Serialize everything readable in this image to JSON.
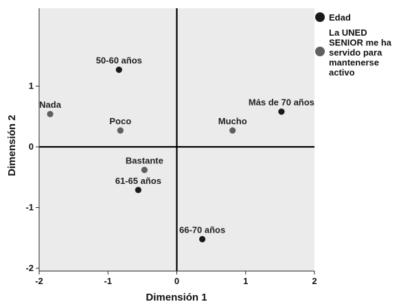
{
  "chart_data": {
    "type": "scatter",
    "xlabel": "Dimensión 1",
    "ylabel": "Dimensión 2",
    "xlim": [
      -2,
      2
    ],
    "ylim": [
      -2,
      2.2
    ],
    "xticks": [
      -2,
      -1,
      0,
      1,
      2
    ],
    "yticks": [
      -2,
      -1,
      0,
      1
    ],
    "xtick_labels": [
      "-2",
      "-1",
      "0",
      "1",
      "2"
    ],
    "ytick_labels": [
      "-2",
      "-1",
      "0",
      "1"
    ],
    "grid": false,
    "reference_lines": {
      "x": 0,
      "y": 0
    },
    "legend_position": "top-right",
    "series": [
      {
        "name": "Edad",
        "color": "#1a1a1a",
        "points": [
          {
            "label": "50-60 años",
            "x": -0.84,
            "y": 1.27
          },
          {
            "label": "Más de 70 años",
            "x": 1.52,
            "y": 0.58
          },
          {
            "label": "61-65 años",
            "x": -0.56,
            "y": -0.71
          },
          {
            "label": "66-70 años",
            "x": 0.37,
            "y": -1.52
          }
        ]
      },
      {
        "name": "La UNED SENIOR me ha servido para mantenerse activo",
        "color": "#5f5f5f",
        "points": [
          {
            "label": "Nada",
            "x": -1.84,
            "y": 0.54
          },
          {
            "label": "Poco",
            "x": -0.82,
            "y": 0.27
          },
          {
            "label": "Mucho",
            "x": 0.81,
            "y": 0.27
          },
          {
            "label": "Bastante",
            "x": -0.47,
            "y": -0.38
          }
        ]
      }
    ],
    "legend": [
      {
        "lines": [
          "Edad"
        ]
      },
      {
        "lines": [
          "La UNED",
          "SENIOR me ha",
          "servido para",
          "mantenerse",
          "activo"
        ]
      }
    ]
  }
}
